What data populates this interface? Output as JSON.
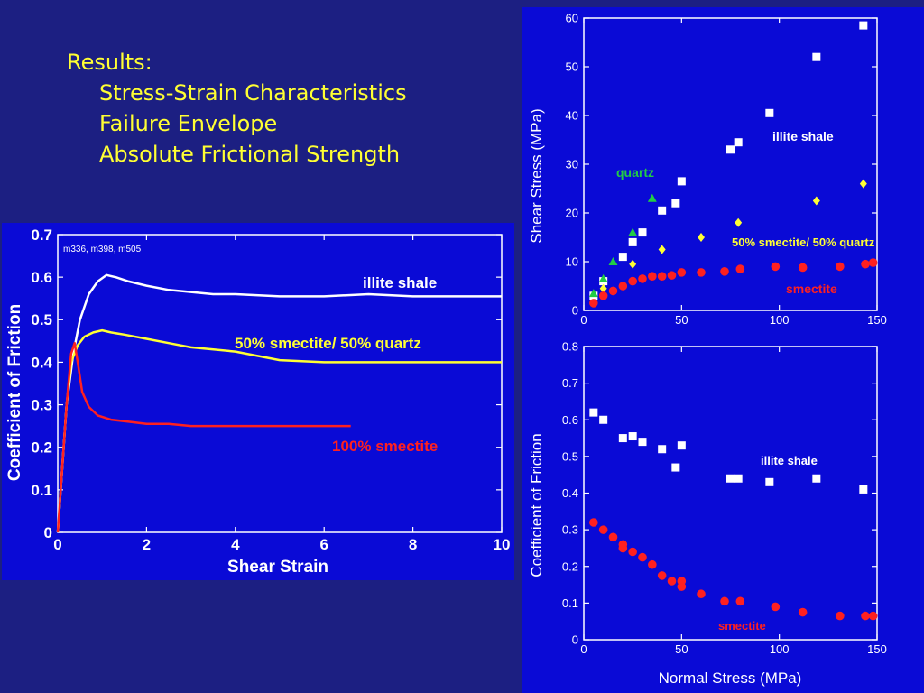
{
  "slide": {
    "heading": "Results:",
    "bullets": [
      "Stress-Strain Characteristics",
      "Failure Envelope",
      "Absolute Frictional Strength"
    ]
  },
  "colors": {
    "background": "#1c1f82",
    "panel": "#0a0ad6",
    "text": "#ffff33",
    "white": "#ffffff",
    "yellow": "#ffff33",
    "red": "#ff2020",
    "green": "#22cc44"
  },
  "chart_data": [
    {
      "type": "line",
      "xlabel": "Shear Strain",
      "ylabel": "Coefficient of Friction",
      "annotation": "m336, m398, m505",
      "xlim": [
        0,
        10
      ],
      "ylim": [
        0,
        0.7
      ],
      "xticks": [
        "0",
        "2",
        "4",
        "6",
        "8",
        "10"
      ],
      "yticks": [
        "0",
        "0.1",
        "0.2",
        "0.3",
        "0.4",
        "0.5",
        "0.6",
        "0.7"
      ],
      "series": [
        {
          "name": "illite shale",
          "color": "#ffffff",
          "x": [
            0,
            0.1,
            0.2,
            0.35,
            0.5,
            0.7,
            0.9,
            1.1,
            1.3,
            1.6,
            2,
            2.5,
            3,
            3.5,
            4,
            5,
            6,
            7,
            8,
            9,
            10
          ],
          "y": [
            0,
            0.15,
            0.3,
            0.42,
            0.5,
            0.56,
            0.59,
            0.605,
            0.6,
            0.59,
            0.58,
            0.57,
            0.565,
            0.56,
            0.56,
            0.555,
            0.555,
            0.56,
            0.555,
            0.555,
            0.555
          ]
        },
        {
          "name": "50% smectite/ 50% quartz",
          "color": "#ffff33",
          "x": [
            0,
            0.1,
            0.2,
            0.3,
            0.45,
            0.6,
            0.8,
            1,
            1.2,
            1.5,
            2,
            2.5,
            3,
            4,
            5,
            6,
            7,
            8,
            9,
            10
          ],
          "y": [
            0,
            0.15,
            0.3,
            0.4,
            0.44,
            0.46,
            0.47,
            0.475,
            0.47,
            0.465,
            0.455,
            0.445,
            0.435,
            0.425,
            0.405,
            0.4,
            0.4,
            0.4,
            0.4,
            0.4
          ]
        },
        {
          "name": "100% smectite",
          "color": "#ff2020",
          "x": [
            0,
            0.1,
            0.2,
            0.3,
            0.38,
            0.45,
            0.55,
            0.7,
            0.9,
            1.2,
            1.6,
            2,
            2.5,
            3,
            4,
            5,
            6,
            6.6
          ],
          "y": [
            0,
            0.15,
            0.3,
            0.42,
            0.445,
            0.4,
            0.33,
            0.295,
            0.275,
            0.265,
            0.26,
            0.255,
            0.255,
            0.25,
            0.25,
            0.25,
            0.25,
            0.25
          ]
        }
      ]
    },
    {
      "type": "scatter",
      "ylabel": "Shear Stress (MPa)",
      "xlim": [
        0,
        150
      ],
      "ylim": [
        0,
        60
      ],
      "xticks": [
        "0",
        "50",
        "100",
        "150"
      ],
      "yticks": [
        "0",
        "10",
        "20",
        "30",
        "40",
        "50",
        "60"
      ],
      "series": [
        {
          "name": "illite shale",
          "marker": "square",
          "color": "#ffffff",
          "x": [
            5,
            10,
            20,
            25,
            30,
            40,
            47,
            50,
            75,
            79,
            95,
            119,
            143
          ],
          "y": [
            3,
            6,
            11,
            14,
            16,
            20.5,
            22,
            26.5,
            33,
            34.5,
            40.5,
            52,
            58.5
          ]
        },
        {
          "name": "quartz",
          "marker": "triangle",
          "color": "#22cc44",
          "x": [
            5,
            10,
            15,
            25,
            35
          ],
          "y": [
            3.5,
            6.5,
            10,
            16,
            23
          ]
        },
        {
          "name": "50% smectite/ 50% quartz",
          "marker": "diamond",
          "color": "#ffff33",
          "x": [
            10,
            25,
            40,
            60,
            79,
            119,
            143
          ],
          "y": [
            4.5,
            9.5,
            12.5,
            15,
            18,
            22.5,
            26
          ]
        },
        {
          "name": "smectite",
          "marker": "circle",
          "color": "#ff2020",
          "x": [
            5,
            10,
            15,
            20,
            25,
            30,
            35,
            40,
            45,
            50,
            60,
            72,
            80,
            98,
            112,
            131,
            144,
            148
          ],
          "y": [
            1.5,
            3,
            4,
            5,
            6,
            6.5,
            7,
            7,
            7.2,
            7.8,
            7.8,
            8,
            8.5,
            9,
            8.8,
            9,
            9.5,
            9.8
          ]
        }
      ]
    },
    {
      "type": "scatter",
      "xlabel": "Normal Stress (MPa)",
      "ylabel": "Coefficient of Friction",
      "xlim": [
        0,
        150
      ],
      "ylim": [
        0,
        0.8
      ],
      "xticks": [
        "0",
        "50",
        "100",
        "150"
      ],
      "yticks": [
        "0",
        "0.1",
        "0.2",
        "0.3",
        "0.4",
        "0.5",
        "0.6",
        "0.7",
        "0.8"
      ],
      "series": [
        {
          "name": "illite shale",
          "marker": "square",
          "color": "#ffffff",
          "x": [
            5,
            10,
            20,
            25,
            30,
            40,
            47,
            50,
            75,
            79,
            95,
            119,
            143
          ],
          "y": [
            0.62,
            0.6,
            0.55,
            0.555,
            0.54,
            0.52,
            0.47,
            0.53,
            0.44,
            0.44,
            0.43,
            0.44,
            0.41
          ]
        },
        {
          "name": "smectite",
          "marker": "circle",
          "color": "#ff2020",
          "x": [
            5,
            10,
            15,
            20,
            20,
            25,
            30,
            35,
            40,
            45,
            50,
            50,
            60,
            72,
            80,
            98,
            112,
            131,
            144,
            148
          ],
          "y": [
            0.32,
            0.3,
            0.28,
            0.26,
            0.25,
            0.24,
            0.225,
            0.205,
            0.175,
            0.16,
            0.16,
            0.145,
            0.125,
            0.105,
            0.105,
            0.09,
            0.075,
            0.065,
            0.065,
            0.065
          ]
        }
      ]
    }
  ]
}
